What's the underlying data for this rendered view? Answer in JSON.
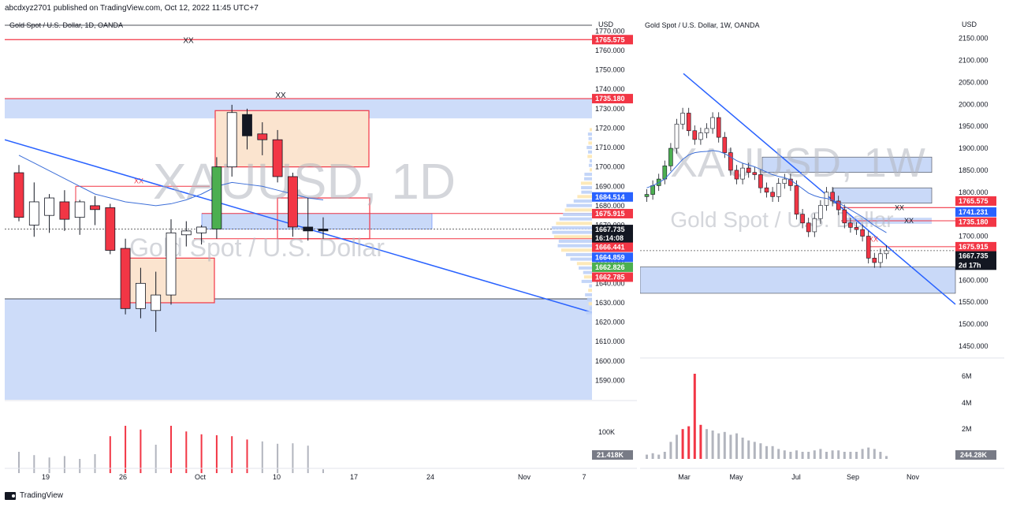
{
  "header": {
    "published": "abcdxyz2701 published on TradingView.com, Oct 12, 2022 11:45 UTC+7"
  },
  "footer": {
    "brand": "TradingView"
  },
  "colors": {
    "bull": "#4caf50",
    "bear": "#f23645",
    "zone": "#bcd0f7",
    "zoneEdge": "#2962ff",
    "supply": "#fbe4cf",
    "trend": "#2962ff",
    "ma": "#3d6fd8",
    "vol": "#b2b5be"
  },
  "icons": [
    "tradingview-logo-icon"
  ],
  "chart_data": [
    {
      "type": "candlestick",
      "title": "Gold Spot / U.S. Dollar, 1D, OANDA",
      "watermark_symbol": "XAUUSD, 1D",
      "watermark_name": "Gold Spot / U.S. Dollar",
      "ylabel": "USD",
      "ylim": [
        1580,
        1773
      ],
      "ticks": [
        "1770.000",
        "1760.000",
        "1750.000",
        "1740.000",
        "1730.000",
        "1720.000",
        "1710.000",
        "1700.000",
        "1690.000",
        "1680.000",
        "1670.000",
        "1660.000",
        "1650.000",
        "1640.000",
        "1630.000",
        "1620.000",
        "1610.000",
        "1600.000",
        "1590.000"
      ],
      "x_labels": [
        "19",
        "26",
        "Oct",
        "10",
        "17",
        "24",
        "Nov",
        "7"
      ],
      "price_labels": [
        {
          "text": "1765.575",
          "price": 1765.575,
          "color": "#f23645"
        },
        {
          "text": "1735.180",
          "price": 1735.18,
          "color": "#f23645"
        },
        {
          "text": "1684.514",
          "price": 1684.514,
          "color": "#2962ff"
        },
        {
          "text": "1675.915",
          "price": 1675.915,
          "color": "#f23645"
        },
        {
          "text": "1667.735",
          "price": 1667.735,
          "color": "#131722"
        },
        {
          "text": "16:14:08",
          "price": 1663.2,
          "color": "#131722"
        },
        {
          "text": "1666.441",
          "price": 1658.6,
          "color": "#f23645"
        },
        {
          "text": "1664.859",
          "price": 1653.4,
          "color": "#2962ff"
        },
        {
          "text": "1662.826",
          "price": 1648.3,
          "color": "#4caf50"
        },
        {
          "text": "1662.785",
          "price": 1643.2,
          "color": "#f23645"
        }
      ],
      "annotations": [
        "XX",
        "XX",
        "XX"
      ],
      "candles": [
        {
          "o": 1697,
          "h": 1701,
          "c": 1674,
          "l": 1672,
          "v": 45
        },
        {
          "o": 1670,
          "h": 1692,
          "c": 1682,
          "l": 1664,
          "v": 38
        },
        {
          "o": 1675,
          "h": 1686,
          "c": 1684,
          "l": 1666,
          "v": 33
        },
        {
          "o": 1682,
          "h": 1688,
          "c": 1673,
          "l": 1667,
          "v": 36
        },
        {
          "o": 1674,
          "h": 1683,
          "c": 1682,
          "l": 1665,
          "v": 30
        },
        {
          "o": 1680,
          "h": 1685,
          "c": 1678,
          "l": 1670,
          "v": 40
        },
        {
          "o": 1679,
          "h": 1681,
          "c": 1657,
          "l": 1655,
          "v": 78
        },
        {
          "o": 1658,
          "h": 1663,
          "c": 1627,
          "l": 1624,
          "v": 100
        },
        {
          "o": 1627,
          "h": 1648,
          "c": 1640,
          "l": 1622,
          "v": 92
        },
        {
          "o": 1626,
          "h": 1646,
          "c": 1634,
          "l": 1615,
          "v": 60
        },
        {
          "o": 1634,
          "h": 1673,
          "c": 1666,
          "l": 1629,
          "v": 100
        },
        {
          "o": 1665,
          "h": 1672,
          "c": 1667,
          "l": 1659,
          "v": 88
        },
        {
          "o": 1666,
          "h": 1670,
          "c": 1669,
          "l": 1660,
          "v": 82
        },
        {
          "o": 1668,
          "h": 1705,
          "c": 1700,
          "l": 1663,
          "v": 80
        },
        {
          "o": 1700,
          "h": 1732,
          "c": 1728,
          "l": 1695,
          "v": 78
        },
        {
          "o": 1727,
          "h": 1730,
          "c": 1716,
          "l": 1709,
          "v": 71
        },
        {
          "o": 1717,
          "h": 1723,
          "c": 1714,
          "l": 1706,
          "v": 67
        },
        {
          "o": 1714,
          "h": 1719,
          "c": 1695,
          "l": 1692,
          "v": 62
        },
        {
          "o": 1695,
          "h": 1697,
          "c": 1669,
          "l": 1664,
          "v": 63
        },
        {
          "o": 1669,
          "h": 1684,
          "c": 1667,
          "l": 1662,
          "v": 58
        },
        {
          "o": 1667,
          "h": 1674,
          "c": 1668,
          "l": 1663,
          "v": 8
        }
      ]
    },
    {
      "type": "candlestick",
      "title": "Gold Spot / U.S. Dollar, 1W, OANDA",
      "watermark_symbol": "XAUUSD, 1W",
      "watermark_name": "Gold Spot / U.S. Dollar",
      "ylabel": "USD",
      "ylim": [
        1430,
        2180
      ],
      "ticks": [
        "2150.000",
        "2100.000",
        "2050.000",
        "2000.000",
        "1950.000",
        "1900.000",
        "1850.000",
        "1800.000",
        "1750.000",
        "1700.000",
        "1650.000",
        "1600.000",
        "1550.000",
        "1500.000",
        "1450.000"
      ],
      "x_labels": [
        "Mar",
        "May",
        "Jul",
        "Sep",
        "Nov"
      ],
      "price_labels": [
        {
          "text": "1765.575",
          "price": 1780,
          "color": "#f23645"
        },
        {
          "text": "1741.231",
          "price": 1755,
          "color": "#2962ff"
        },
        {
          "text": "1735.180",
          "price": 1732,
          "color": "#f23645"
        },
        {
          "text": "1675.915",
          "price": 1676,
          "color": "#f23645"
        },
        {
          "text": "1667.735",
          "price": 1655,
          "color": "#131722"
        },
        {
          "text": "2d 17h",
          "price": 1634,
          "color": "#131722"
        }
      ],
      "volume_ticks": [
        "6M",
        "4M",
        "2M"
      ],
      "volume_label": "244.28K",
      "left_volume_label": "21.418K",
      "left_volume_tick": "100K",
      "annotations": [
        "XX",
        "XX",
        "XX"
      ],
      "closes": [
        1795,
        1815,
        1830,
        1860,
        1900,
        1955,
        1980,
        1940,
        1920,
        1935,
        1945,
        1970,
        1925,
        1890,
        1850,
        1830,
        1855,
        1845,
        1840,
        1810,
        1800,
        1790,
        1820,
        1830,
        1815,
        1750,
        1730,
        1710,
        1740,
        1770,
        1800,
        1780,
        1760,
        1730,
        1720,
        1715,
        1700,
        1650,
        1640,
        1660,
        1667
      ],
      "volumes": [
        0.3,
        0.4,
        0.3,
        0.5,
        1.2,
        1.7,
        2.1,
        2.3,
        6.0,
        2.4,
        2.1,
        2.0,
        1.8,
        1.9,
        1.7,
        1.8,
        1.5,
        1.3,
        1.2,
        1.1,
        0.9,
        0.9,
        0.7,
        0.6,
        0.5,
        0.6,
        0.5,
        0.5,
        0.6,
        0.7,
        0.5,
        0.6,
        0.6,
        0.5,
        0.5,
        0.5,
        0.7,
        0.8,
        0.7,
        0.5,
        0.2
      ]
    }
  ]
}
